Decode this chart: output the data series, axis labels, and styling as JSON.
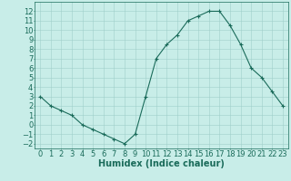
{
  "x": [
    0,
    1,
    2,
    3,
    4,
    5,
    6,
    7,
    8,
    9,
    10,
    11,
    12,
    13,
    14,
    15,
    16,
    17,
    18,
    19,
    20,
    21,
    22,
    23
  ],
  "y": [
    3,
    2,
    1.5,
    1,
    0,
    -0.5,
    -1,
    -1.5,
    -2,
    -1,
    3,
    7,
    8.5,
    9.5,
    11,
    11.5,
    12,
    12,
    10.5,
    8.5,
    6,
    5,
    3.5,
    2
  ],
  "line_color": "#1a6b5a",
  "marker": "+",
  "bg_color": "#c8ede8",
  "grid_color": "#9fcfca",
  "xlabel": "Humidex (Indice chaleur)",
  "xlabel_fontsize": 7,
  "tick_fontsize": 6,
  "ylim": [
    -2.5,
    13
  ],
  "xlim": [
    -0.5,
    23.5
  ],
  "yticks": [
    -2,
    -1,
    0,
    1,
    2,
    3,
    4,
    5,
    6,
    7,
    8,
    9,
    10,
    11,
    12
  ],
  "xticks": [
    0,
    1,
    2,
    3,
    4,
    5,
    6,
    7,
    8,
    9,
    10,
    11,
    12,
    13,
    14,
    15,
    16,
    17,
    18,
    19,
    20,
    21,
    22,
    23
  ]
}
